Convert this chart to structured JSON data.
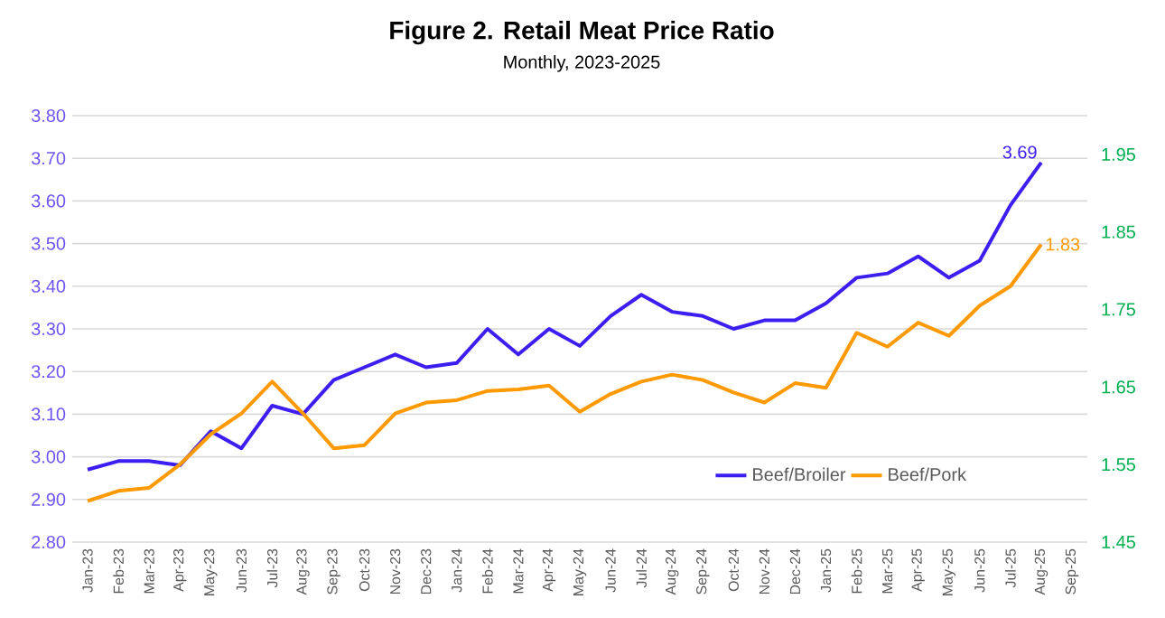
{
  "chart_data": {
    "type": "line",
    "title": "Figure 2. Retail Meat Price Ratio",
    "subtitle": "Monthly, 2023-2025",
    "categories": [
      "Jan-23",
      "Feb-23",
      "Mar-23",
      "Apr-23",
      "May-23",
      "Jun-23",
      "Jul-23",
      "Aug-23",
      "Sep-23",
      "Oct-23",
      "Nov-23",
      "Dec-23",
      "Jan-24",
      "Feb-24",
      "Mar-24",
      "Apr-24",
      "May-24",
      "Jun-24",
      "Jul-24",
      "Aug-24",
      "Sep-24",
      "Oct-24",
      "Nov-24",
      "Dec-24",
      "Jan-25",
      "Feb-25",
      "Mar-25",
      "Apr-25",
      "May-25",
      "Jun-25",
      "Jul-25",
      "Aug-25",
      "Sep-25"
    ],
    "series": [
      {
        "name": "Beef/Broiler",
        "color": "#3c1ef0",
        "values": [
          2.97,
          2.99,
          2.99,
          2.98,
          3.06,
          3.02,
          3.12,
          3.1,
          3.18,
          3.21,
          3.24,
          3.21,
          3.22,
          3.3,
          3.24,
          3.3,
          3.26,
          3.33,
          3.38,
          3.34,
          3.33,
          3.3,
          3.32,
          3.32,
          3.36,
          3.42,
          3.43,
          3.47,
          3.42,
          3.46,
          3.59,
          3.69,
          null
        ],
        "value_labels": [
          null,
          null,
          null,
          null,
          null,
          null,
          null,
          null,
          null,
          null,
          null,
          null,
          null,
          null,
          null,
          null,
          null,
          null,
          null,
          null,
          null,
          null,
          null,
          null,
          null,
          null,
          null,
          null,
          null,
          null,
          null,
          "3.69",
          null
        ]
      },
      {
        "name": "Beef/Pork",
        "color": "#ff9900",
        "axis": "y2",
        "values": [
          1.503,
          1.516,
          1.52,
          1.55,
          1.589,
          1.616,
          1.657,
          1.616,
          1.571,
          1.575,
          1.616,
          1.63,
          1.633,
          1.645,
          1.647,
          1.652,
          1.618,
          1.641,
          1.657,
          1.666,
          1.659,
          1.643,
          1.63,
          1.655,
          1.649,
          1.72,
          1.702,
          1.733,
          1.716,
          1.755,
          1.78,
          1.834,
          null
        ],
        "value_labels": [
          null,
          null,
          null,
          null,
          null,
          null,
          null,
          null,
          null,
          null,
          null,
          null,
          null,
          null,
          null,
          null,
          null,
          null,
          null,
          null,
          null,
          null,
          null,
          null,
          null,
          null,
          null,
          null,
          null,
          null,
          null,
          "1.83",
          null
        ]
      }
    ],
    "ylim": [
      2.8,
      3.8
    ],
    "yticks": [
      {
        "value": 2.8,
        "label": "2.80"
      },
      {
        "value": 2.9,
        "label": "2.90"
      },
      {
        "value": 3.0,
        "label": "3.00"
      },
      {
        "value": 3.1,
        "label": "3.10"
      },
      {
        "value": 3.2,
        "label": "3.20"
      },
      {
        "value": 3.3,
        "label": "3.30"
      },
      {
        "value": 3.4,
        "label": "3.40"
      },
      {
        "value": 3.5,
        "label": "3.50"
      },
      {
        "value": 3.6,
        "label": "3.60"
      },
      {
        "value": 3.7,
        "label": "3.70"
      },
      {
        "value": 3.8,
        "label": "3.80"
      }
    ],
    "y2lim": [
      1.45,
      2.0
    ],
    "y2ticks": [
      1.45,
      1.55,
      1.65,
      1.75,
      1.85,
      1.95
    ],
    "grid": "y",
    "legend": "bottom right",
    "marker": "none",
    "line_style": "solid"
  }
}
